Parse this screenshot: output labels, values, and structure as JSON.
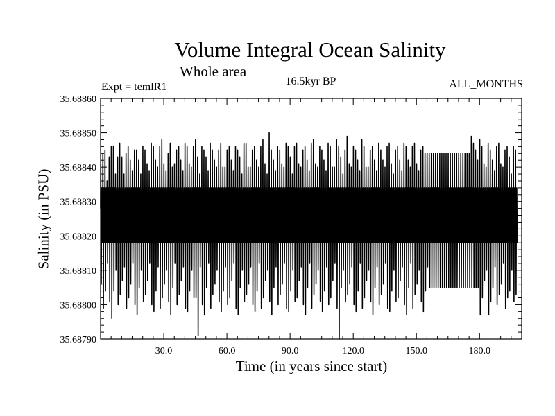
{
  "chart_data": {
    "type": "line",
    "title": "Volume Integral Ocean Salinity",
    "subtitle": "Whole area",
    "experiment_label": "Expt = temlR1",
    "period_label": "16.5kyr BP",
    "months_label": "ALL_MONTHS",
    "xlabel": "Time (in years since start)",
    "ylabel": "Salinity (in PSU)",
    "xlim": [
      0,
      200
    ],
    "ylim": [
      35.6879,
      35.6886
    ],
    "x_ticks": [
      30,
      60,
      90,
      120,
      150,
      180
    ],
    "x_tick_labels": [
      "30.0",
      "60.0",
      "90.0",
      "120.0",
      "150.0",
      "180.0"
    ],
    "y_ticks": [
      35.6879,
      35.688,
      35.6881,
      35.6882,
      35.6883,
      35.6884,
      35.6885,
      35.6886
    ],
    "y_tick_labels": [
      "35.68790",
      "35.68800",
      "35.68810",
      "35.68820",
      "35.68830",
      "35.68840",
      "35.68850",
      "35.68860"
    ],
    "series": [
      {
        "name": "Salinity",
        "description": "Monthly values oscillating about ~35.68825 PSU between annual maxima (~35.68840-35.68850) and minima (~35.68795-35.68805); regular repeating cycle from ~year 155 to ~year 177",
        "annual_max": [
          35.68841,
          35.68844,
          35.68845,
          35.68836,
          35.68843,
          35.68846,
          35.68846,
          35.68838,
          35.68843,
          35.68847,
          35.68843,
          35.68838,
          35.68844,
          35.68846,
          35.68842,
          35.68839,
          35.68845,
          35.68845,
          35.68842,
          35.68838,
          35.68846,
          35.68845,
          35.68841,
          35.68839,
          35.68847,
          35.68846,
          35.68842,
          35.6884,
          35.68846,
          35.68848,
          35.68841,
          35.68839,
          35.68844,
          35.68847,
          35.6884,
          35.68841,
          35.68845,
          35.68846,
          35.68842,
          35.68839,
          35.68847,
          35.68846,
          35.68841,
          35.6884,
          35.68846,
          35.68848,
          35.68843,
          35.68838,
          35.68846,
          35.68845,
          35.68843,
          35.68839,
          35.68847,
          35.68845,
          35.68842,
          35.6884,
          35.68845,
          35.68847,
          35.6884,
          35.6884,
          35.68845,
          35.68846,
          35.68842,
          35.68839,
          35.68846,
          35.68845,
          35.68843,
          35.68838,
          35.68847,
          35.68847,
          35.6884,
          35.6884,
          35.68845,
          35.68846,
          35.68842,
          35.6884,
          35.68846,
          35.68848,
          35.68841,
          35.68838,
          35.6885,
          35.68845,
          35.68842,
          35.68839,
          35.68846,
          35.68845,
          35.68841,
          35.6884,
          35.68847,
          35.68846,
          35.68843,
          35.68838,
          35.68846,
          35.68847,
          35.68841,
          35.6884,
          35.68845,
          35.68846,
          35.68842,
          35.68839,
          35.68847,
          35.68848,
          35.68841,
          35.6884,
          35.68846,
          35.68845,
          35.68842,
          35.68839,
          35.68847,
          35.68846,
          35.6884,
          35.6884,
          35.68848,
          35.68846,
          35.68843,
          35.68838,
          35.68845,
          35.68849,
          35.68841,
          35.6884,
          35.68846,
          35.68845,
          35.68842,
          35.68839,
          35.68848,
          35.68846,
          35.6884,
          35.6884,
          35.68845,
          35.68846,
          35.68842,
          35.68839,
          35.68847,
          35.68845,
          35.68842,
          35.6884,
          35.68846,
          35.68847,
          35.68841,
          35.68838,
          35.68845,
          35.68846,
          35.68842,
          35.68839,
          35.68847,
          35.68846,
          35.68842,
          35.6884,
          35.68846,
          35.68847,
          35.68841,
          35.68839,
          35.68845,
          35.68846,
          35.68844,
          35.68844,
          35.68844,
          35.68844,
          35.68844,
          35.68844,
          35.68844,
          35.68844,
          35.68844,
          35.68844,
          35.68844,
          35.68844,
          35.68844,
          35.68844,
          35.68844,
          35.68844,
          35.68844,
          35.68844,
          35.68844,
          35.68844,
          35.68844,
          35.68844,
          35.68849,
          35.68847,
          35.68845,
          35.68842,
          35.68848,
          35.68846,
          35.68841,
          35.6884,
          35.68847,
          35.68845,
          35.68842,
          35.68839,
          35.68846,
          35.68847,
          35.68841,
          35.6884,
          35.68845,
          35.68846,
          35.68843,
          35.68838,
          35.68846,
          35.68845
        ],
        "annual_min": [
          35.68806,
          35.68799,
          35.68804,
          35.68812,
          35.68801,
          35.68796,
          35.68804,
          35.6881,
          35.688,
          35.68803,
          35.68807,
          35.68811,
          35.68799,
          35.68802,
          35.68806,
          35.68812,
          35.688,
          35.68797,
          35.68805,
          35.6881,
          35.68801,
          35.68803,
          35.68807,
          35.68812,
          35.688,
          35.68798,
          35.68804,
          35.68811,
          35.68799,
          35.68802,
          35.68806,
          35.6881,
          35.68801,
          35.68797,
          35.68805,
          35.68812,
          35.688,
          35.68803,
          35.68807,
          35.68811,
          35.68799,
          35.68798,
          35.68804,
          35.6881,
          35.68802,
          35.68802,
          35.68791,
          35.68811,
          35.688,
          35.68797,
          35.68805,
          35.68812,
          35.68799,
          35.68803,
          35.68806,
          35.6881,
          35.68801,
          35.68798,
          35.68804,
          35.68811,
          35.688,
          35.68802,
          35.68807,
          35.68812,
          35.68799,
          35.68797,
          35.68805,
          35.6881,
          35.68801,
          35.68803,
          35.68806,
          35.68811,
          35.688,
          35.68798,
          35.68804,
          35.68812,
          35.68799,
          35.68802,
          35.68807,
          35.6881,
          35.68801,
          35.68797,
          35.68805,
          35.68811,
          35.688,
          35.68803,
          35.68806,
          35.68812,
          35.68799,
          35.68798,
          35.68804,
          35.6881,
          35.68801,
          35.68802,
          35.68807,
          35.68811,
          35.688,
          35.68797,
          35.68805,
          35.68812,
          35.68799,
          35.68803,
          35.68806,
          35.6881,
          35.68801,
          35.68798,
          35.68804,
          35.68811,
          35.688,
          35.68802,
          35.68807,
          35.68812,
          35.68799,
          35.6879,
          35.68805,
          35.6881,
          35.68801,
          35.68803,
          35.68806,
          35.68811,
          35.688,
          35.68798,
          35.68804,
          35.68812,
          35.68799,
          35.68802,
          35.68807,
          35.6881,
          35.68801,
          35.68797,
          35.68805,
          35.68811,
          35.688,
          35.68803,
          35.68806,
          35.68812,
          35.68799,
          35.68798,
          35.68804,
          35.6881,
          35.68801,
          35.68802,
          35.68807,
          35.68811,
          35.688,
          35.68797,
          35.68805,
          35.68812,
          35.68799,
          35.68803,
          35.68806,
          35.6881,
          35.68801,
          35.68798,
          35.68804,
          35.68811,
          35.68805,
          35.68805,
          35.68805,
          35.68805,
          35.68805,
          35.68805,
          35.68805,
          35.68805,
          35.68805,
          35.68805,
          35.68805,
          35.68805,
          35.68805,
          35.68805,
          35.68805,
          35.68805,
          35.68805,
          35.68805,
          35.68805,
          35.68805,
          35.68805,
          35.68805,
          35.68805,
          35.68805,
          35.68797,
          35.68802,
          35.68807,
          35.6881,
          35.68797,
          35.68801,
          35.68805,
          35.68811,
          35.688,
          35.68803,
          35.68806,
          35.68812,
          35.68799,
          35.68802,
          35.68804,
          35.6881,
          35.68801,
          35.68803,
          35.68807,
          35.68811,
          35.688,
          35.68802
        ],
        "regular_band": [
          35.68819,
          35.68833
        ]
      }
    ]
  }
}
